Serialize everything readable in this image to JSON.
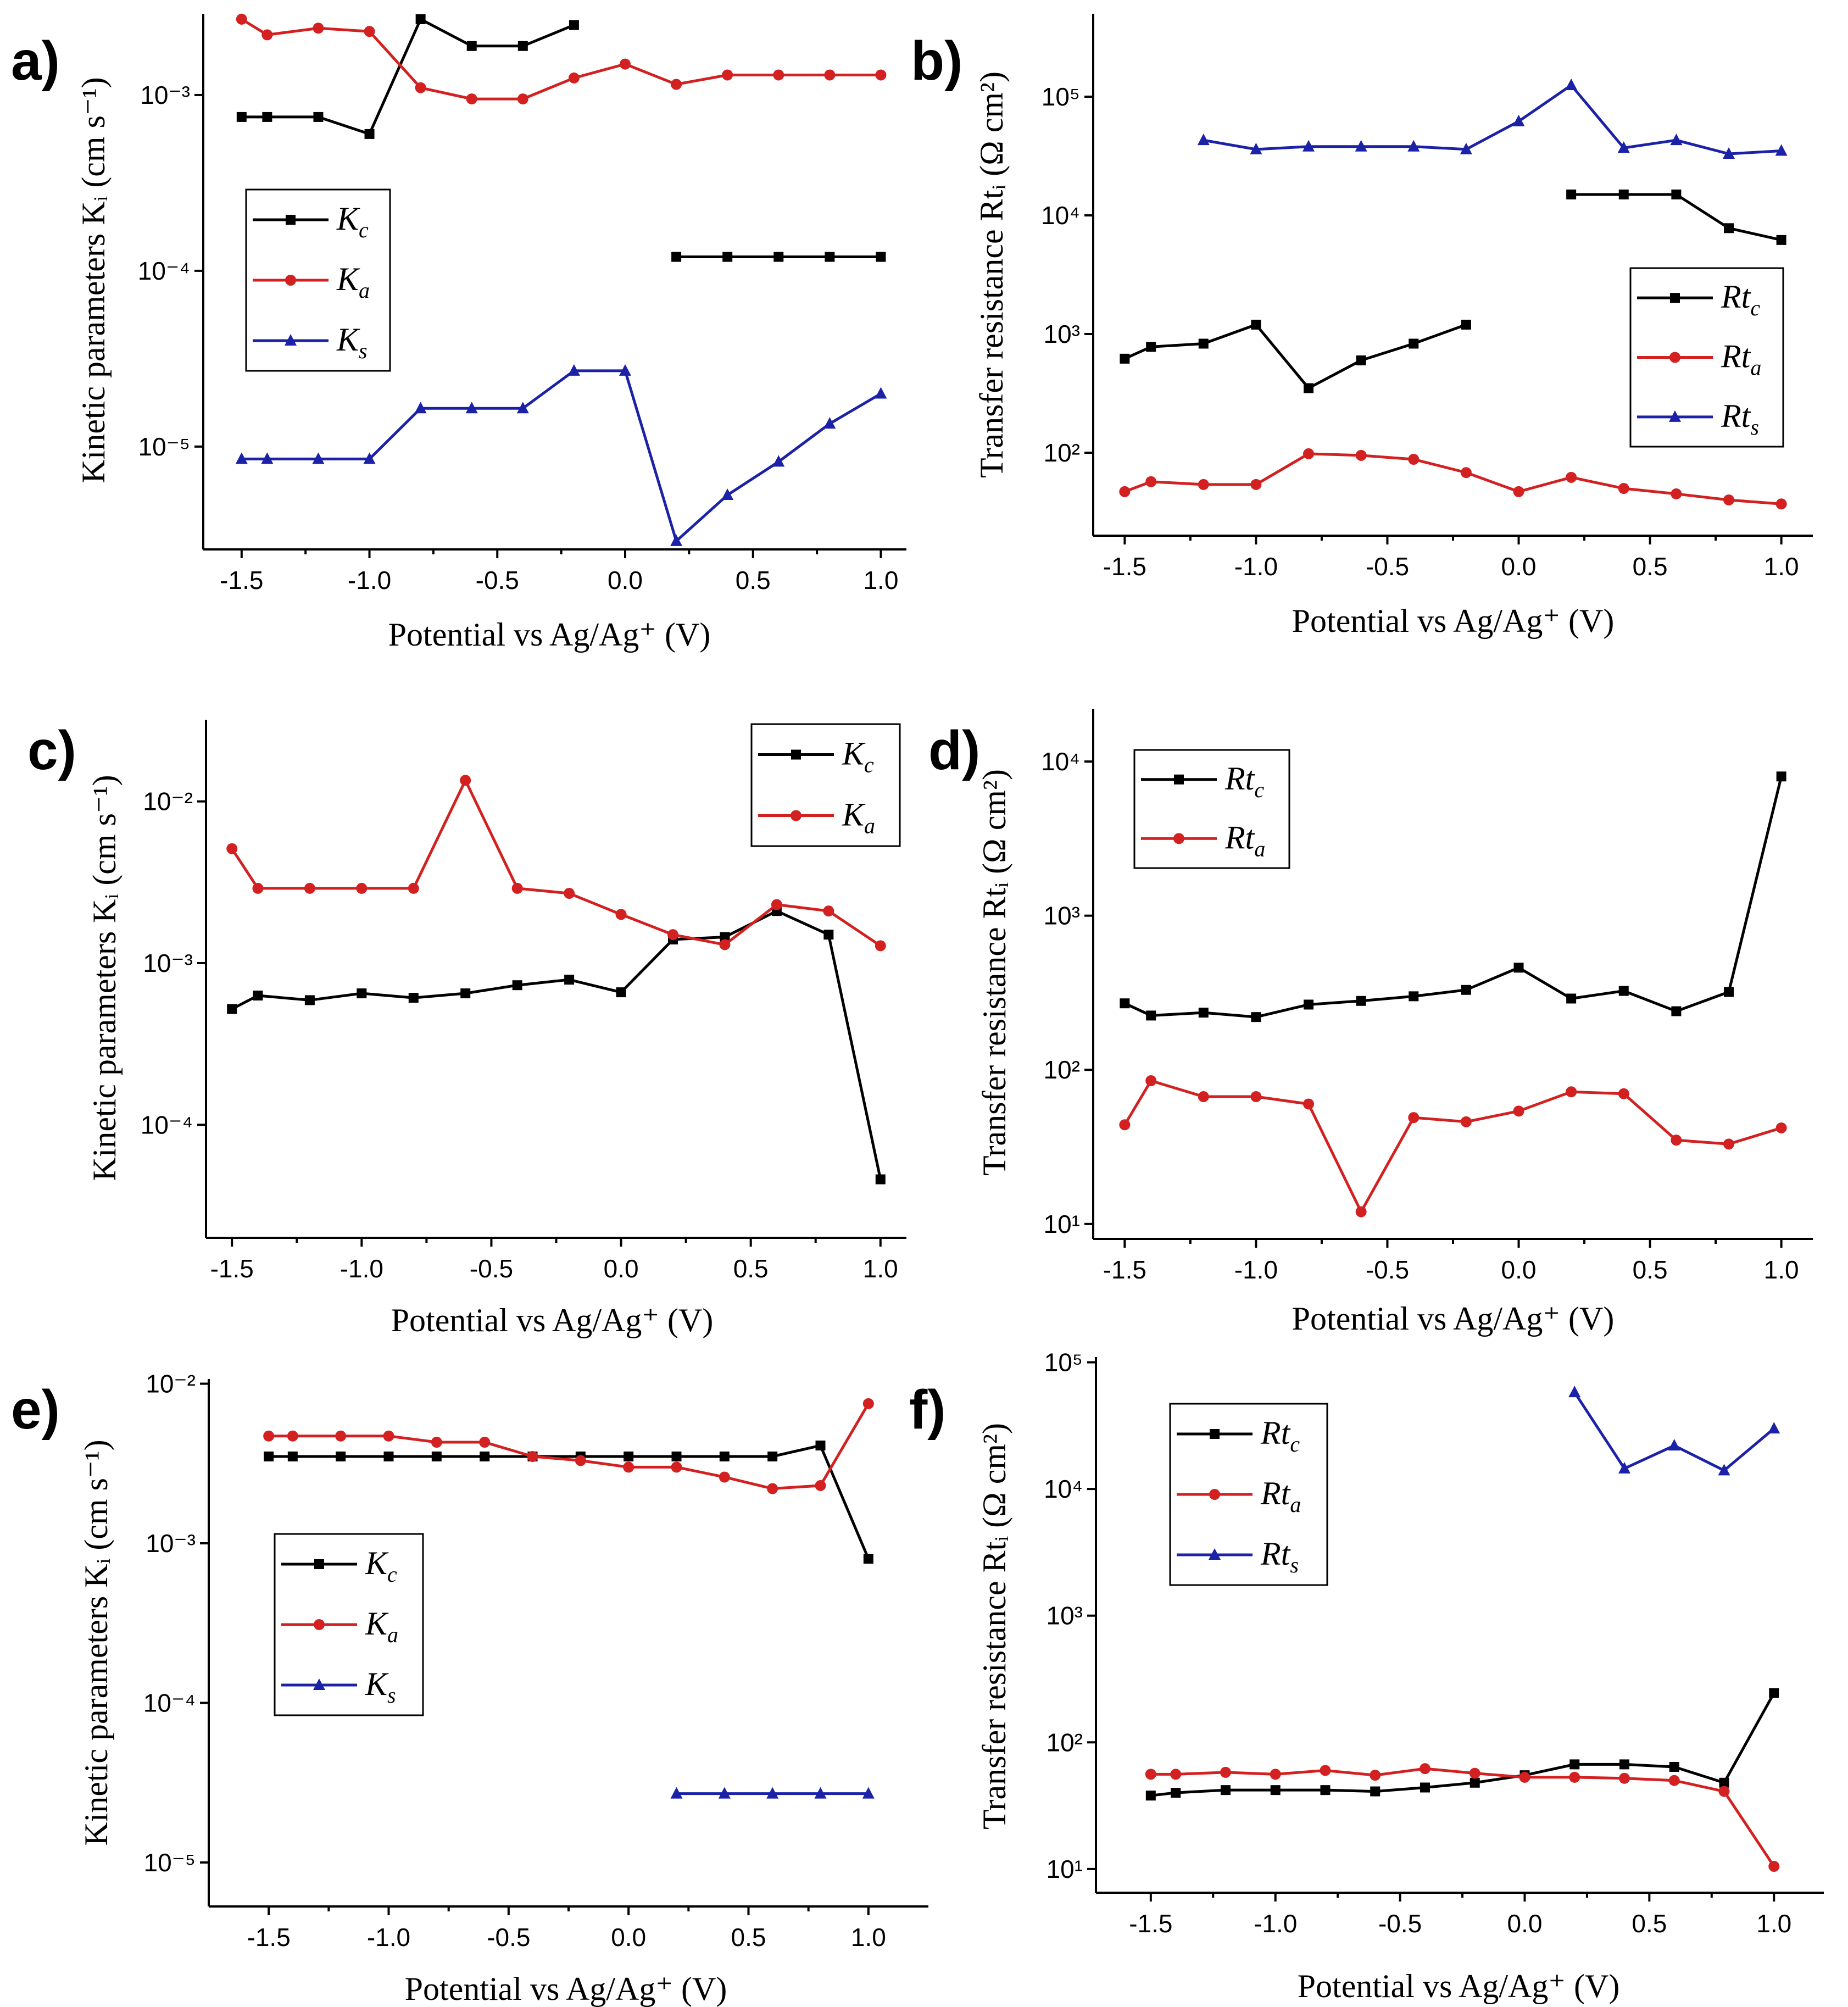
{
  "chart_data": [
    {
      "panel": "a)",
      "type": "line",
      "yscale": "log",
      "xlabel": "Potential vs Ag/Ag⁺ (V)",
      "ylabel": "Kinetic parameters Kᵢ (cm s⁻¹)",
      "xticks": [
        "-1.5",
        "-1.0",
        "-0.5",
        "0.0",
        "0.5",
        "1.0"
      ],
      "yticks": [
        "10⁻⁵",
        "10⁻⁴",
        "10⁻³"
      ],
      "xlim": [
        -1.65,
        1.1
      ],
      "ylim": [
        2.6e-06,
        0.0029
      ],
      "legend_position": "center-left",
      "series": [
        {
          "name": "K",
          "sub": "c",
          "color": "#000000",
          "marker": "square",
          "x": [
            -1.5,
            -1.4,
            -1.2,
            -1.0,
            -0.8,
            -0.6,
            -0.4,
            -0.2,
            null,
            0.2,
            0.4,
            0.6,
            0.8,
            1.0
          ],
          "y": [
            0.00075,
            0.00075,
            0.00075,
            0.0006,
            0.0027,
            0.0019,
            0.0019,
            0.0025,
            null,
            0.00012,
            0.00012,
            0.00012,
            0.00012,
            0.00012
          ]
        },
        {
          "name": "K",
          "sub": "a",
          "color": "#d32020",
          "marker": "circle",
          "x": [
            -1.5,
            -1.4,
            -1.2,
            -1.0,
            -0.8,
            -0.6,
            -0.4,
            -0.2,
            0.0,
            0.2,
            0.4,
            0.6,
            0.8,
            1.0
          ],
          "y": [
            0.0027,
            0.0022,
            0.0024,
            0.0023,
            0.0011,
            0.00095,
            0.00095,
            0.00125,
            0.0015,
            0.00115,
            0.0013,
            0.0013,
            0.0013,
            0.0013
          ]
        },
        {
          "name": "K",
          "sub": "s",
          "color": "#1c22a8",
          "marker": "triangle",
          "x": [
            -1.5,
            -1.4,
            -1.2,
            -1.0,
            -0.8,
            -0.6,
            -0.4,
            -0.2,
            0.0,
            0.2,
            0.4,
            0.6,
            0.8,
            1.0
          ],
          "y": [
            8.5e-06,
            8.5e-06,
            8.5e-06,
            8.5e-06,
            1.65e-05,
            1.65e-05,
            1.65e-05,
            2.7e-05,
            2.7e-05,
            2.9e-06,
            5.3e-06,
            8.2e-06,
            1.35e-05,
            2e-05
          ]
        }
      ]
    },
    {
      "panel": "b)",
      "type": "line",
      "yscale": "log",
      "xlabel": "Potential vs Ag/Ag⁺ (V)",
      "ylabel": "Transfer resistance Rtᵢ (Ω cm²)",
      "xticks": [
        "-1.5",
        "-1.0",
        "-0.5",
        "0.0",
        "0.5",
        "1.0"
      ],
      "yticks": [
        "10²",
        "10³",
        "10⁴",
        "10⁵"
      ],
      "xlim": [
        -1.62,
        1.12
      ],
      "ylim": [
        20,
        500000
      ],
      "legend_position": "right",
      "series": [
        {
          "name": "Rt",
          "sub": "c",
          "color": "#000000",
          "marker": "square",
          "x": [
            -1.5,
            -1.4,
            -1.2,
            -1.0,
            -0.8,
            -0.6,
            -0.4,
            -0.2,
            null,
            0.2,
            0.4,
            0.6,
            0.8,
            1.0
          ],
          "y": [
            620,
            780,
            830,
            1200,
            350,
            600,
            830,
            1200,
            null,
            15000,
            15000,
            15000,
            7800,
            6200
          ]
        },
        {
          "name": "Rt",
          "sub": "a",
          "color": "#d32020",
          "marker": "circle",
          "x": [
            -1.5,
            -1.4,
            -1.2,
            -1.0,
            -0.8,
            -0.6,
            -0.4,
            -0.2,
            0.0,
            0.2,
            0.4,
            0.6,
            0.8,
            1.0
          ],
          "y": [
            47,
            57,
            54,
            54,
            98,
            95,
            88,
            68,
            47,
            62,
            50,
            45,
            40,
            37
          ]
        },
        {
          "name": "Rt",
          "sub": "s",
          "color": "#1c22a8",
          "marker": "triangle",
          "x": [
            -1.2,
            -1.0,
            -0.8,
            -0.6,
            -0.4,
            -0.2,
            0.0,
            0.2,
            0.4,
            0.6,
            0.8,
            1.0
          ],
          "y": [
            43000,
            36000,
            38000,
            38000,
            38000,
            36000,
            62000,
            125000,
            37000,
            43000,
            33000,
            35000
          ]
        }
      ]
    },
    {
      "panel": "c)",
      "type": "line",
      "yscale": "log",
      "xlabel": "Potential vs Ag/Ag⁺ (V)",
      "ylabel": "Kinetic parameters Kᵢ (cm s⁻¹)",
      "xticks": [
        "-1.5",
        "-1.0",
        "-0.5",
        "0.0",
        "0.5",
        "1.0"
      ],
      "yticks": [
        "10⁻⁴",
        "10⁻³",
        "10⁻²"
      ],
      "xlim": [
        -1.6,
        1.1
      ],
      "ylim": [
        2e-05,
        0.032
      ],
      "legend_position": "top-right",
      "series": [
        {
          "name": "K",
          "sub": "c",
          "color": "#000000",
          "marker": "square",
          "x": [
            -1.5,
            -1.4,
            -1.2,
            -1.0,
            -0.8,
            -0.6,
            -0.4,
            -0.2,
            0.0,
            0.2,
            0.4,
            0.6,
            0.8,
            1.0
          ],
          "y": [
            0.00052,
            0.00063,
            0.00059,
            0.00065,
            0.00061,
            0.00065,
            0.00073,
            0.00079,
            0.00066,
            0.0014,
            0.00145,
            0.0021,
            0.0015,
            4.6e-05
          ]
        },
        {
          "name": "K",
          "sub": "a",
          "color": "#d32020",
          "marker": "circle",
          "x": [
            -1.5,
            -1.4,
            -1.2,
            -1.0,
            -0.8,
            -0.6,
            -0.4,
            -0.2,
            0.0,
            0.2,
            0.4,
            0.6,
            0.8,
            1.0
          ],
          "y": [
            0.0051,
            0.0029,
            0.0029,
            0.0029,
            0.0029,
            0.0135,
            0.0029,
            0.0027,
            0.002,
            0.0015,
            0.0013,
            0.0023,
            0.0021,
            0.00128
          ]
        }
      ]
    },
    {
      "panel": "d)",
      "type": "line",
      "yscale": "log",
      "xlabel": "Potential vs Ag/Ag⁺ (V)",
      "ylabel": "Transfer resistance Rtᵢ (Ω cm²)",
      "xticks": [
        "-1.5",
        "-1.0",
        "-0.5",
        "0.0",
        "0.5",
        "1.0"
      ],
      "yticks": [
        "10¹",
        "10²",
        "10³",
        "10⁴"
      ],
      "xlim": [
        -1.62,
        1.12
      ],
      "ylim": [
        8,
        22000
      ],
      "legend_position": "top-left",
      "series": [
        {
          "name": "Rt",
          "sub": "c",
          "color": "#000000",
          "marker": "square",
          "x": [
            -1.5,
            -1.4,
            -1.2,
            -1.0,
            -0.8,
            -0.6,
            -0.4,
            -0.2,
            0.0,
            0.2,
            0.4,
            0.6,
            0.8,
            1.0
          ],
          "y": [
            270,
            225,
            235,
            220,
            265,
            280,
            300,
            330,
            460,
            290,
            325,
            240,
            320,
            8000
          ]
        },
        {
          "name": "Rt",
          "sub": "a",
          "color": "#d32020",
          "marker": "circle",
          "x": [
            -1.5,
            -1.4,
            -1.2,
            -1.0,
            -0.8,
            -0.6,
            -0.4,
            -0.2,
            0.0,
            0.2,
            0.4,
            0.6,
            0.8,
            1.0
          ],
          "y": [
            44,
            85,
            67,
            67,
            60,
            12,
            49,
            46,
            54,
            72,
            70,
            35,
            33,
            42
          ]
        }
      ]
    },
    {
      "panel": "e)",
      "type": "line",
      "yscale": "log",
      "xlabel": "Potential vs Ag/Ag⁺ (V)",
      "ylabel": "Kinetic parameters Kᵢ (cm s⁻¹)",
      "xticks": [
        "-1.5",
        "-1.0",
        "-0.5",
        "0.0",
        "0.5",
        "1.0"
      ],
      "yticks": [
        "10⁻⁵",
        "10⁻⁴",
        "10⁻³",
        "10⁻²"
      ],
      "xlim": [
        -1.75,
        1.25
      ],
      "ylim": [
        5.3e-06,
        0.0107
      ],
      "legend_position": "center-left",
      "series": [
        {
          "name": "K",
          "sub": "c",
          "color": "#000000",
          "marker": "square",
          "x": [
            -1.5,
            -1.4,
            -1.2,
            -1.0,
            -0.8,
            -0.6,
            -0.4,
            -0.2,
            0.0,
            0.2,
            0.4,
            0.6,
            0.8,
            1.0
          ],
          "y": [
            0.0035,
            0.0035,
            0.0035,
            0.0035,
            0.0035,
            0.0035,
            0.0035,
            0.0035,
            0.0035,
            0.0035,
            0.0035,
            0.0035,
            0.0041,
            0.0008
          ]
        },
        {
          "name": "K",
          "sub": "a",
          "color": "#d32020",
          "marker": "circle",
          "x": [
            -1.5,
            -1.4,
            -1.2,
            -1.0,
            -0.8,
            -0.6,
            -0.4,
            -0.2,
            0.0,
            0.2,
            0.4,
            0.6,
            0.8,
            1.0
          ],
          "y": [
            0.0047,
            0.0047,
            0.0047,
            0.0047,
            0.0043,
            0.0043,
            0.0035,
            0.0033,
            0.003,
            0.003,
            0.0026,
            0.0022,
            0.0023,
            0.0075
          ]
        },
        {
          "name": "K",
          "sub": "s",
          "color": "#1c22a8",
          "marker": "triangle",
          "x": [
            0.2,
            0.4,
            0.6,
            0.8,
            1.0
          ],
          "y": [
            2.7e-05,
            2.7e-05,
            2.7e-05,
            2.7e-05,
            2.7e-05
          ]
        }
      ]
    },
    {
      "panel": "f)",
      "type": "line",
      "yscale": "log",
      "xlabel": "Potential vs Ag/Ag⁺ (V)",
      "ylabel": "Transfer resistance Rtᵢ (Ω cm²)",
      "xticks": [
        "-1.5",
        "-1.0",
        "-0.5",
        "0.0",
        "0.5",
        "1.0"
      ],
      "yticks": [
        "10¹",
        "10²",
        "10³",
        "10⁴",
        "10⁵"
      ],
      "xlim": [
        -1.72,
        1.2
      ],
      "ylim": [
        6.5,
        110000
      ],
      "legend_position": "top-left",
      "series": [
        {
          "name": "Rt",
          "sub": "c",
          "color": "#000000",
          "marker": "square",
          "x": [
            -1.5,
            -1.4,
            -1.2,
            -1.0,
            -0.8,
            -0.6,
            -0.4,
            -0.2,
            0.0,
            0.2,
            0.4,
            0.6,
            0.8,
            1.0
          ],
          "y": [
            38,
            40,
            42,
            42,
            42,
            41,
            44,
            48,
            55,
            67,
            67,
            64,
            48,
            245
          ]
        },
        {
          "name": "Rt",
          "sub": "a",
          "color": "#d32020",
          "marker": "circle",
          "x": [
            -1.5,
            -1.4,
            -1.2,
            -1.0,
            -0.8,
            -0.6,
            -0.4,
            -0.2,
            0.0,
            0.2,
            0.4,
            0.6,
            0.8,
            1.0
          ],
          "y": [
            56,
            56,
            58,
            56,
            60,
            55,
            62,
            57,
            53,
            53,
            52,
            50,
            41,
            10.5
          ]
        },
        {
          "name": "Rt",
          "sub": "s",
          "color": "#1c22a8",
          "marker": "triangle",
          "x": [
            0.2,
            0.4,
            0.6,
            0.8,
            1.0
          ],
          "y": [
            58000,
            14500,
            22000,
            14000,
            30000
          ]
        }
      ]
    }
  ]
}
